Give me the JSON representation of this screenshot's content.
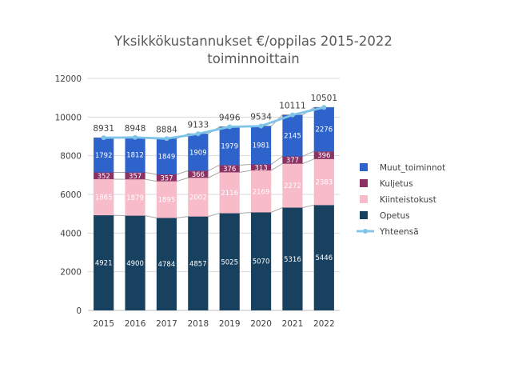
{
  "chart_data": {
    "type": "bar",
    "title_lines": [
      "Yksikkökustannukset €/oppilas 2015-2022",
      "toiminnoittain"
    ],
    "xlabel": "",
    "ylabel": "",
    "ylim": [
      0,
      12000
    ],
    "yticks": [
      0,
      2000,
      4000,
      6000,
      8000,
      10000,
      12000
    ],
    "grid": true,
    "legend_position": "right",
    "categories": [
      "2015",
      "2016",
      "2017",
      "2018",
      "2019",
      "2020",
      "2021",
      "2022"
    ],
    "series": [
      {
        "name": "Opetus",
        "color": "#17415F",
        "values": [
          4921,
          4900,
          4784,
          4857,
          5025,
          5070,
          5316,
          5446
        ]
      },
      {
        "name": "Kiinteistokust",
        "color": "#F8BBC9",
        "values": [
          1865,
          1879,
          1895,
          2002,
          2116,
          2169,
          2272,
          2383
        ]
      },
      {
        "name": "Kuljetus",
        "color": "#8B3163",
        "values": [
          352,
          357,
          357,
          366,
          376,
          313,
          377,
          396
        ]
      },
      {
        "name": "Muut_toiminnot",
        "color": "#2E63CC",
        "values": [
          1792,
          1812,
          1849,
          1909,
          1979,
          1981,
          2145,
          2276
        ]
      }
    ],
    "total_series": {
      "name": "Yhteensä",
      "color": "#7EC3E8",
      "type": "line",
      "values": [
        8931,
        8948,
        8884,
        9133,
        9496,
        9534,
        10111,
        10501
      ]
    }
  }
}
